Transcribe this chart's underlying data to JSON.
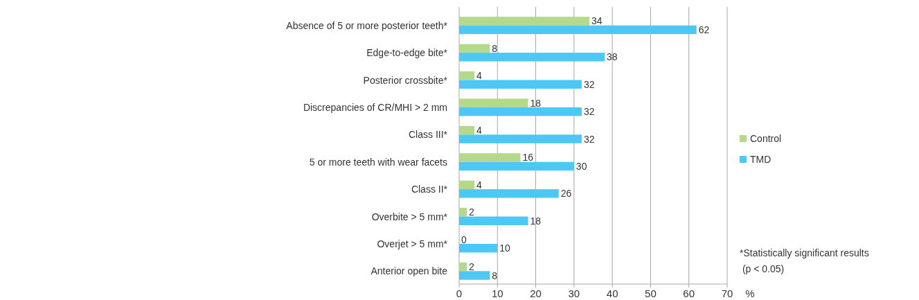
{
  "chart_data": {
    "type": "bar",
    "orientation": "horizontal",
    "categories": [
      "Absence of 5 or more posterior teeth*",
      "Edge-to-edge bite*",
      "Posterior crossbite*",
      "Discrepancies of CR/MHI > 2 mm",
      "Class III*",
      "5 or more teeth with wear facets",
      "Class II*",
      "Overbite > 5 mm*",
      "Overjet > 5 mm*",
      "Anterior open bite"
    ],
    "series": [
      {
        "name": "Control",
        "color": "#b5d98a",
        "values": [
          34,
          8,
          4,
          18,
          4,
          16,
          4,
          2,
          0,
          2
        ]
      },
      {
        "name": "TMD",
        "color": "#4dc8f5",
        "values": [
          62,
          38,
          32,
          32,
          32,
          30,
          26,
          18,
          10,
          8
        ]
      }
    ],
    "xlim": [
      0,
      70
    ],
    "xticks": [
      0,
      10,
      20,
      30,
      40,
      50,
      60,
      70
    ],
    "xlabel": "%",
    "grid": "x",
    "legend": "right",
    "data_labels": true,
    "annotations": [
      "*Statistically significant results\n (p < 0.05)"
    ]
  }
}
